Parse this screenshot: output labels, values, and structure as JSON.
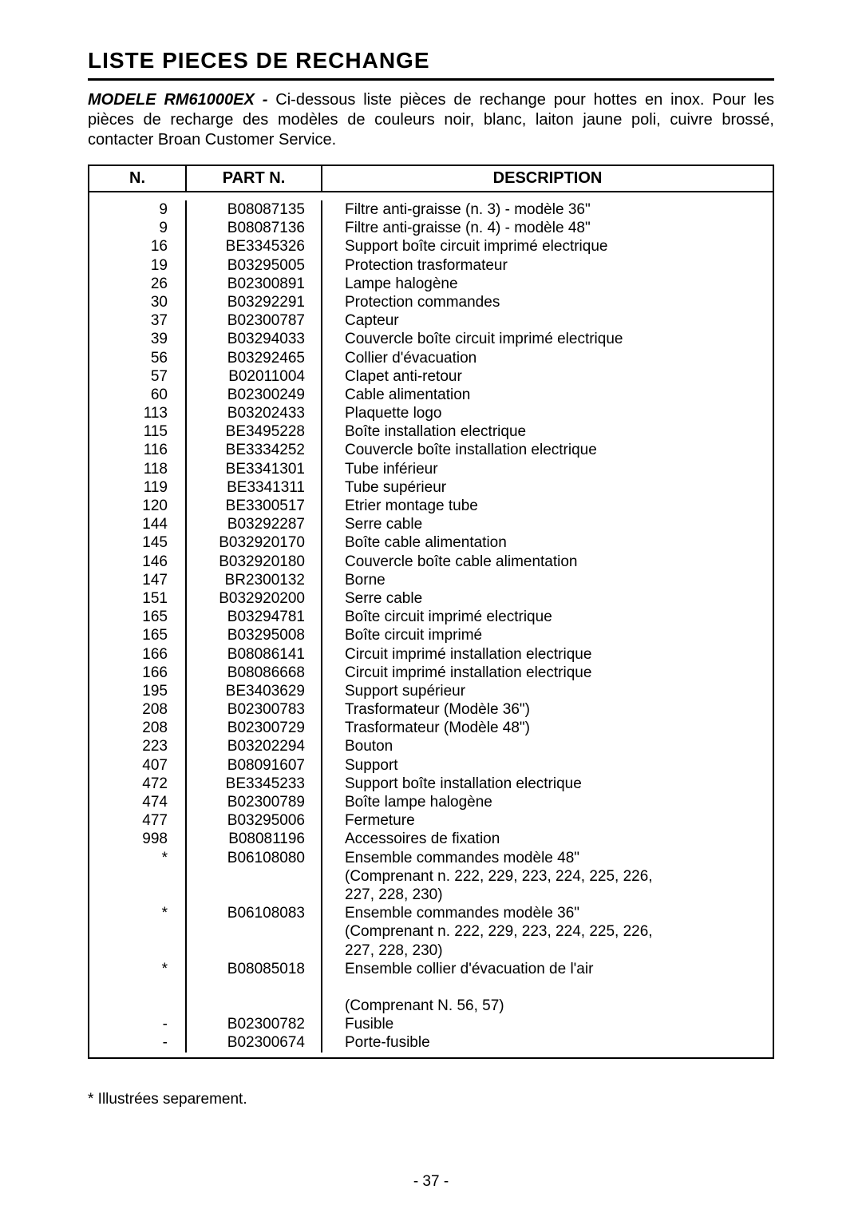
{
  "title": "LISTE PIECES DE RECHANGE",
  "intro": {
    "model": "MODELE RM61000EX - ",
    "text": "Ci-dessous liste pièces de rechange pour hottes en inox. Pour les pièces de recharge des modèles de couleurs noir, blanc, laiton jaune poli, cuivre brossé, contacter Broan Customer Service."
  },
  "headers": {
    "n": "N.",
    "part": "PART N.",
    "desc": "DESCRIPTION"
  },
  "rows": [
    {
      "n": "9",
      "part": "B08087135",
      "desc": "Filtre anti-graisse (n. 3) - modèle 36\""
    },
    {
      "n": "9",
      "part": "B08087136",
      "desc": "Filtre anti-graisse (n. 4) - modèle 48\""
    },
    {
      "n": "16",
      "part": "BE3345326",
      "desc": "Support boîte circuit imprimé electrique"
    },
    {
      "n": "19",
      "part": "B03295005",
      "desc": "Protection trasformateur"
    },
    {
      "n": "26",
      "part": "B02300891",
      "desc": "Lampe halogène"
    },
    {
      "n": "30",
      "part": "B03292291",
      "desc": "Protection commandes"
    },
    {
      "n": "37",
      "part": "B02300787",
      "desc": "Capteur"
    },
    {
      "n": "39",
      "part": "B03294033",
      "desc": "Couvercle boîte circuit imprimé electrique"
    },
    {
      "n": "56",
      "part": "B03292465",
      "desc": "Collier d'évacuation"
    },
    {
      "n": "57",
      "part": "B02011004",
      "desc": "Clapet anti-retour"
    },
    {
      "n": "60",
      "part": "B02300249",
      "desc": "Cable alimentation"
    },
    {
      "n": "113",
      "part": "B03202433",
      "desc": "Plaquette logo"
    },
    {
      "n": "115",
      "part": "BE3495228",
      "desc": "Boîte installation electrique"
    },
    {
      "n": "116",
      "part": "BE3334252",
      "desc": "Couvercle boîte installation electrique"
    },
    {
      "n": "118",
      "part": "BE3341301",
      "desc": "Tube inférieur"
    },
    {
      "n": "119",
      "part": "BE3341311",
      "desc": "Tube supérieur"
    },
    {
      "n": "120",
      "part": "BE3300517",
      "desc": "Etrier montage tube"
    },
    {
      "n": "144",
      "part": "B03292287",
      "desc": "Serre cable"
    },
    {
      "n": "145",
      "part": "B032920170",
      "desc": "Boîte cable alimentation"
    },
    {
      "n": "146",
      "part": "B032920180",
      "desc": "Couvercle boîte cable alimentation"
    },
    {
      "n": "147",
      "part": "BR2300132",
      "desc": "Borne"
    },
    {
      "n": "151",
      "part": "B032920200",
      "desc": "Serre cable"
    },
    {
      "n": "165",
      "part": "B03294781",
      "desc": "Boîte circuit imprimé electrique"
    },
    {
      "n": "165",
      "part": "B03295008",
      "desc": "Boîte circuit imprimé"
    },
    {
      "n": "166",
      "part": "B08086141",
      "desc": "Circuit imprimé installation electrique"
    },
    {
      "n": "166",
      "part": "B08086668",
      "desc": "Circuit imprimé installation electrique"
    },
    {
      "n": "195",
      "part": "BE3403629",
      "desc": "Support supérieur"
    },
    {
      "n": "208",
      "part": "B02300783",
      "desc": "Trasformateur (Modèle 36\")"
    },
    {
      "n": "208",
      "part": "B02300729",
      "desc": "Trasformateur (Modèle 48\")"
    },
    {
      "n": "223",
      "part": "B03202294",
      "desc": "Bouton"
    },
    {
      "n": "407",
      "part": "B08091607",
      "desc": "Support"
    },
    {
      "n": "472",
      "part": "BE3345233",
      "desc": "Support boîte installation electrique"
    },
    {
      "n": "474",
      "part": "B02300789",
      "desc": "Boîte lampe halogène"
    },
    {
      "n": "477",
      "part": "B03295006",
      "desc": "Fermeture"
    },
    {
      "n": "998",
      "part": "B08081196",
      "desc": "Accessoires de fixation"
    },
    {
      "n": "*",
      "part": "B06108080",
      "desc": "Ensemble commandes modèle 48\""
    },
    {
      "n": "",
      "part": "",
      "desc": "(Comprenant n. 222, 229, 223, 224, 225, 226,"
    },
    {
      "n": "",
      "part": "",
      "desc": "227, 228, 230)"
    },
    {
      "n": "*",
      "part": "B06108083",
      "desc": "Ensemble commandes modèle 36\""
    },
    {
      "n": "",
      "part": "",
      "desc": "(Comprenant n. 222, 229, 223, 224, 225, 226,"
    },
    {
      "n": "",
      "part": "",
      "desc": "227, 228, 230)"
    },
    {
      "n": "*",
      "part": "B08085018",
      "desc": "Ensemble collier d'évacuation de l'air"
    },
    {
      "n": "",
      "part": "",
      "desc": "",
      "spacer": true
    },
    {
      "n": "",
      "part": "",
      "desc": "(Comprenant N. 56, 57)"
    },
    {
      "n": "-",
      "part": "B02300782",
      "desc": "Fusible"
    },
    {
      "n": "-",
      "part": "B02300674",
      "desc": "Porte-fusible"
    }
  ],
  "footnote": "* Illustrées separement.",
  "pageNumber": "- 37 -"
}
